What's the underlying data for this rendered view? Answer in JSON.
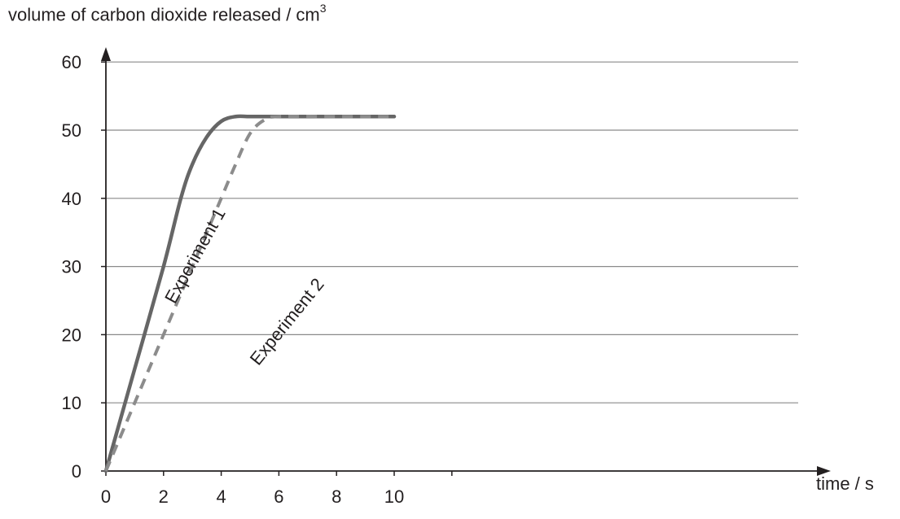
{
  "chart_data": {
    "type": "line",
    "title": "",
    "ylabel": "volume of carbon dioxide released / cm",
    "ylabel_superscript": "3",
    "xlabel": "time / s",
    "xlim": [
      0,
      12
    ],
    "ylim": [
      0,
      60
    ],
    "xticks": [
      0,
      2,
      4,
      6,
      8,
      10
    ],
    "yticks": [
      0,
      10,
      20,
      30,
      40,
      50,
      60
    ],
    "grid": "horizontal",
    "series": [
      {
        "name": "Experiment 1",
        "style": "solid",
        "color": "#666666",
        "x": [
          0,
          1,
          2,
          2.6,
          3,
          3.5,
          4,
          4.5,
          5,
          6,
          8,
          10
        ],
        "y": [
          0,
          15,
          30,
          40,
          45,
          49,
          51.3,
          52,
          52,
          52,
          52,
          52
        ]
      },
      {
        "name": "Experiment 2",
        "style": "dashed",
        "color": "#8c8c8c",
        "x": [
          0,
          1,
          2,
          3,
          4,
          4.5,
          5,
          5.5,
          6,
          8,
          10
        ],
        "y": [
          0,
          10,
          20,
          30,
          40,
          45,
          49.5,
          51.5,
          52,
          52,
          52
        ]
      }
    ]
  }
}
